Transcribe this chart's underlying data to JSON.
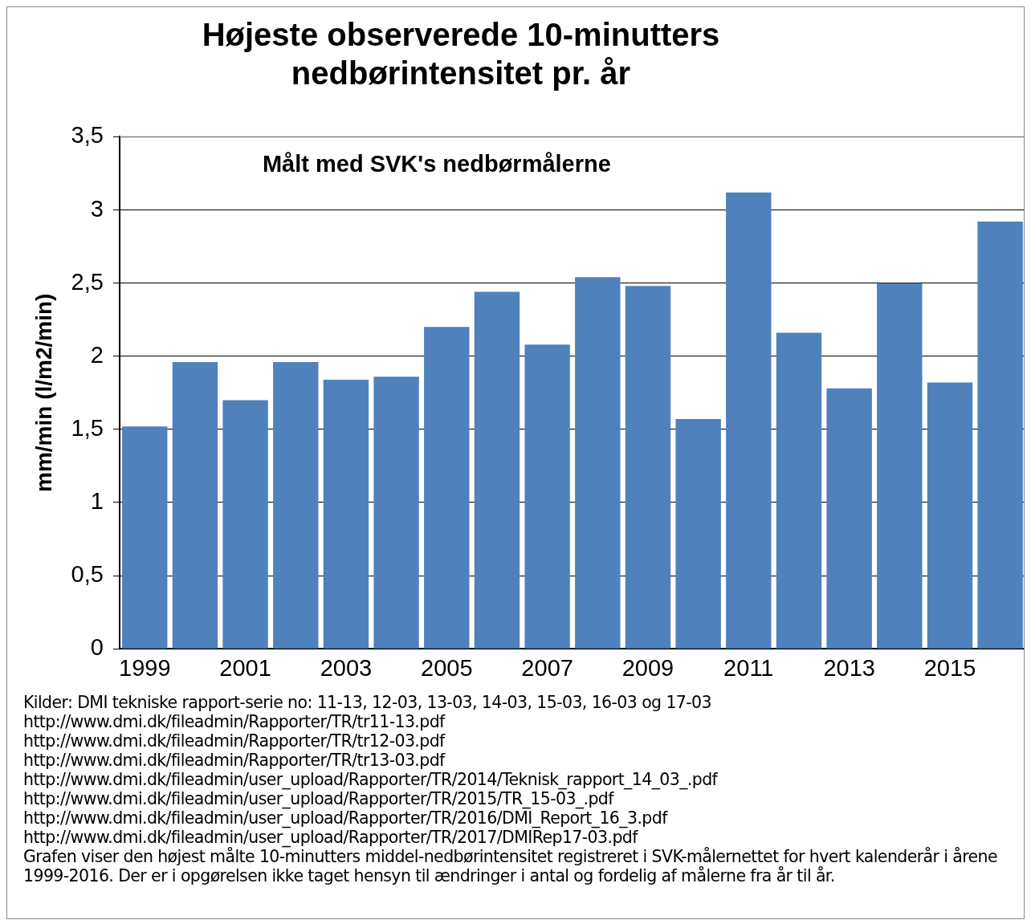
{
  "chart_data": {
    "type": "bar",
    "title": "Højeste observerede 10-minutters nedbørintensitet pr. år",
    "subtitle": "Målt med SVK's nedbørmålerne",
    "ylabel": "mm/min (l/m2/min)",
    "categories": [
      "1999",
      null,
      "2001",
      null,
      "2003",
      null,
      "2005",
      null,
      "2007",
      null,
      "2009",
      null,
      "2011",
      null,
      "2013",
      null,
      "2015",
      null
    ],
    "values": [
      1.52,
      1.96,
      1.7,
      1.96,
      1.84,
      1.86,
      2.2,
      2.44,
      2.08,
      2.54,
      2.48,
      1.57,
      3.12,
      2.16,
      1.78,
      2.5,
      1.82,
      2.92
    ],
    "color": "#4f81bd",
    "ylim": [
      0,
      3.5
    ],
    "yticks": [
      0,
      {
        "value": 0.5,
        "label": "0,5"
      },
      1,
      {
        "value": 1.5,
        "label": "1,5"
      },
      2,
      {
        "value": 2.5,
        "label": "2,5"
      },
      3,
      {
        "value": 3.5,
        "label": "3,5"
      }
    ],
    "grid": "y",
    "legend": false,
    "annotations": [
      "Kilder: DMI tekniske rapport-serie no: 11-13, 12-03, 13-03, 14-03, 15-03, 16-03 og 17-03",
      "http://www.dmi.dk/fileadmin/Rapporter/TR/tr11-13.pdf",
      "http://www.dmi.dk/fileadmin/Rapporter/TR/tr12-03.pdf",
      "http://www.dmi.dk/fileadmin/Rapporter/TR/tr13-03.pdf",
      "http://www.dmi.dk/fileadmin/user_upload/Rapporter/TR/2014/Teknisk_rapport_14_03_.pdf",
      "http://www.dmi.dk/fileadmin/user_upload/Rapporter/TR/2015/TR_15-03_.pdf",
      "http://www.dmi.dk/fileadmin/user_upload/Rapporter/TR/2016/DMI_Report_16_3.pdf",
      "http://www.dmi.dk/fileadmin/user_upload/Rapporter/TR/2017/DMIRep17-03.pdf",
      "Grafen viser den højest målte 10-minutters middel-nedbørintensitet registreret i SVK-målernettet for hvert kalenderår i årene 1999-2016.  Der er i opgørelsen ikke taget hensyn til ændringer i antal og fordelig af målerne fra år til år."
    ]
  }
}
